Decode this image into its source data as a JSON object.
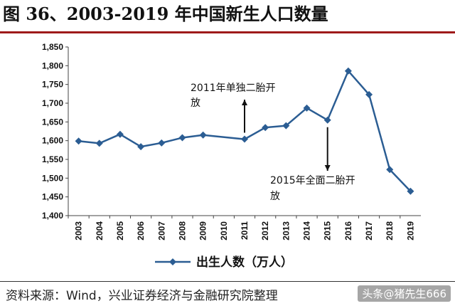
{
  "header": {
    "title": "图 36、2003-2019 年中国新生人口数量"
  },
  "footer": {
    "source": "资料来源：Wind，兴业证券经济与金融研究院整理",
    "watermark": "头条@猪先生666"
  },
  "colors": {
    "series": "#2b5d93",
    "title_rule": "#9e1a1a"
  },
  "chart_data": {
    "type": "line",
    "title": "图 36、2003-2019 年中国新生人口数量",
    "xlabel": "",
    "ylabel": "",
    "ylim": [
      1400,
      1850
    ],
    "yticks": [
      1400,
      1450,
      1500,
      1550,
      1600,
      1650,
      1700,
      1750,
      1800,
      1850
    ],
    "ytick_labels": [
      "1,400",
      "1,450",
      "1,500",
      "1,550",
      "1,600",
      "1,650",
      "1,700",
      "1,750",
      "1,800",
      "1,850"
    ],
    "categories": [
      "2003",
      "2004",
      "2005",
      "2006",
      "2007",
      "2008",
      "2009",
      "2010",
      "2011",
      "2012",
      "2013",
      "2014",
      "2015",
      "2016",
      "2017",
      "2018",
      "2019"
    ],
    "series": [
      {
        "name": "出生人数（万人）",
        "x": [
          "2003",
          "2004",
          "2005",
          "2006",
          "2007",
          "2008",
          "2009",
          "2011",
          "2012",
          "2013",
          "2014",
          "2015",
          "2016",
          "2017",
          "2018",
          "2019"
        ],
        "values": [
          1599,
          1593,
          1617,
          1584,
          1594,
          1608,
          1615,
          1604,
          1635,
          1640,
          1687,
          1655,
          1786,
          1723,
          1523,
          1465
        ]
      }
    ],
    "legend": {
      "label": "出生人数（万人）",
      "position": "bottom"
    },
    "grid": false,
    "annotations": [
      {
        "text_line1": "2011年单独二胎开",
        "text_line2": "放",
        "x": "2011",
        "arrow": "up"
      },
      {
        "text_line1": "2015年全面二胎开",
        "text_line2": "放",
        "x": "2015",
        "arrow": "down"
      }
    ]
  }
}
